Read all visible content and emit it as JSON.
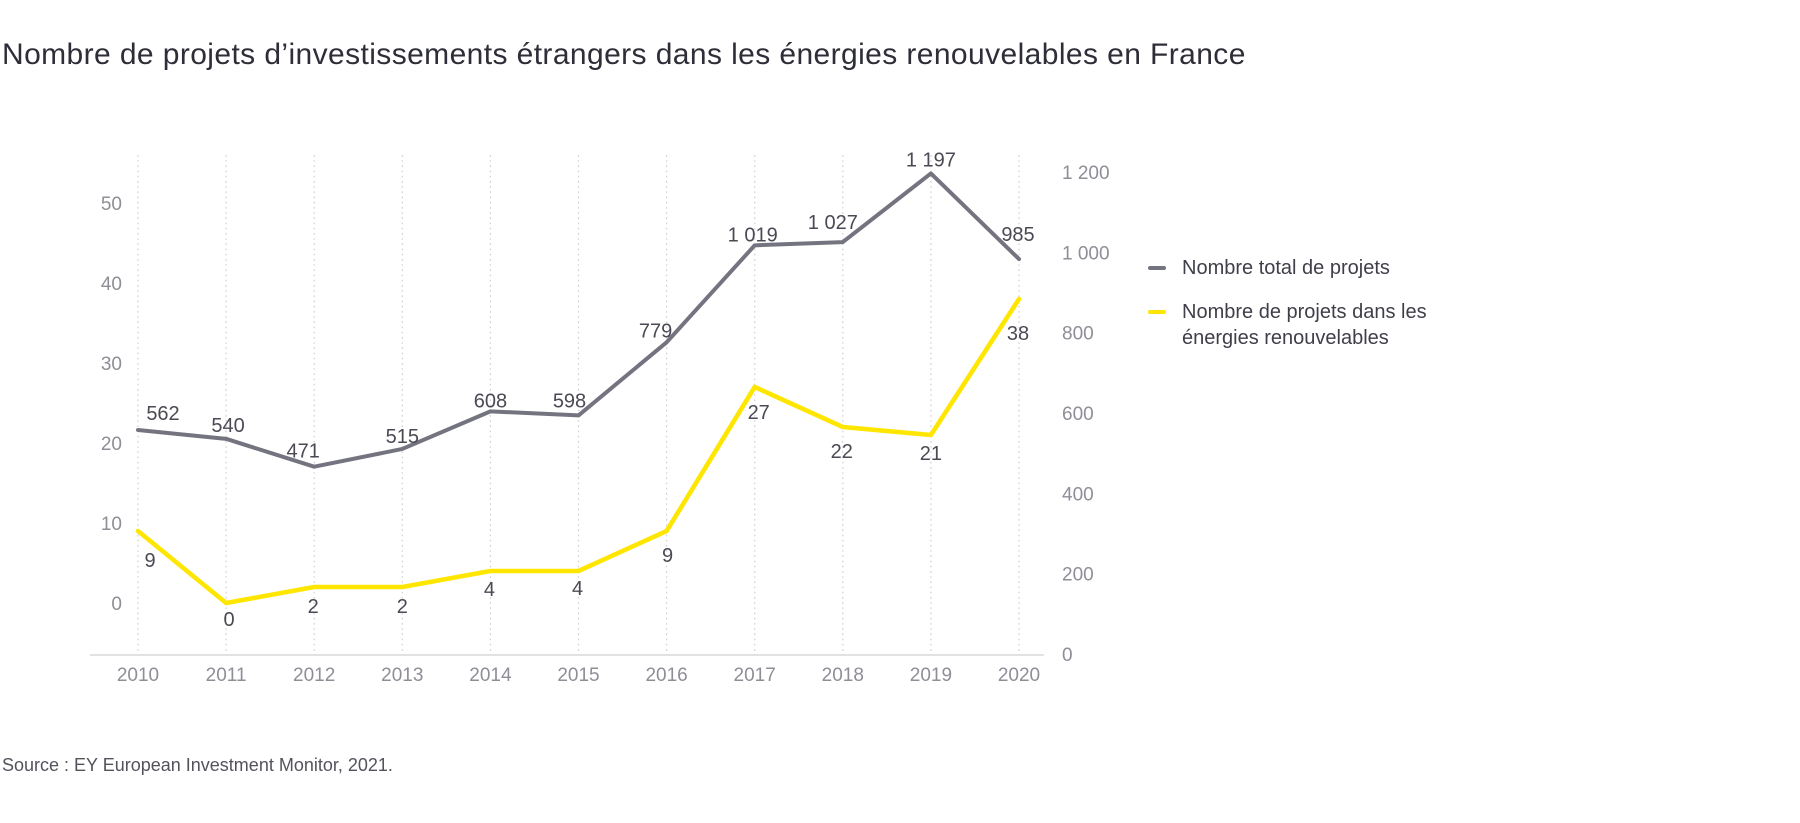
{
  "title": "Nombre de projets d’investissements étrangers dans les énergies renouvelables en France",
  "source": "Source : EY European Investment Monitor, 2021.",
  "colors": {
    "total_line": "#747480",
    "renewables_line": "#FFE600",
    "title_text": "#2e2e38",
    "data_label_text": "#4a4a54",
    "tick_text": "#8e8e97",
    "gridline": "#cfcfd4",
    "axis_line": "#d9d9dc"
  },
  "legend": {
    "items": [
      {
        "label": "Nombre total de projets",
        "color": "#747480"
      },
      {
        "label": "Nombre de projets dans les énergies renouvelables",
        "color": "#FFE600"
      }
    ]
  },
  "chart_data": {
    "type": "line",
    "title": "Nombre de projets d’investissements étrangers dans les énergies renouvelables en France",
    "categories": [
      "2010",
      "2011",
      "2012",
      "2013",
      "2014",
      "2015",
      "2016",
      "2017",
      "2018",
      "2019",
      "2020"
    ],
    "series": [
      {
        "name": "Nombre total de projets",
        "axis": "right",
        "color": "#747480",
        "values": [
          562,
          540,
          471,
          515,
          608,
          598,
          779,
          1019,
          1027,
          1197,
          985
        ],
        "labels": [
          "562",
          "540",
          "471",
          "515",
          "608",
          "598",
          "779",
          "1 019",
          "1 027",
          "1 197",
          "985"
        ]
      },
      {
        "name": "Nombre de projets dans les énergies renouvelables",
        "axis": "left",
        "color": "#FFE600",
        "values": [
          9,
          0,
          2,
          2,
          4,
          4,
          9,
          27,
          22,
          21,
          38
        ],
        "labels": [
          "9",
          "0",
          "2",
          "2",
          "4",
          "4",
          "9",
          "27",
          "22",
          "21",
          "38"
        ]
      }
    ],
    "left_axis": {
      "values": [
        0,
        10,
        20,
        30,
        40,
        50
      ],
      "labels": [
        "0",
        "10",
        "20",
        "30",
        "40",
        "50"
      ],
      "range": [
        0,
        50
      ]
    },
    "right_axis": {
      "values": [
        0,
        200,
        400,
        600,
        800,
        1000,
        1200
      ],
      "labels": [
        "0",
        "200",
        "400",
        "600",
        "800",
        "1 000",
        "1 200"
      ],
      "range": [
        0,
        1200
      ]
    },
    "grid": "vertical-dotted",
    "legend_position": "right"
  }
}
